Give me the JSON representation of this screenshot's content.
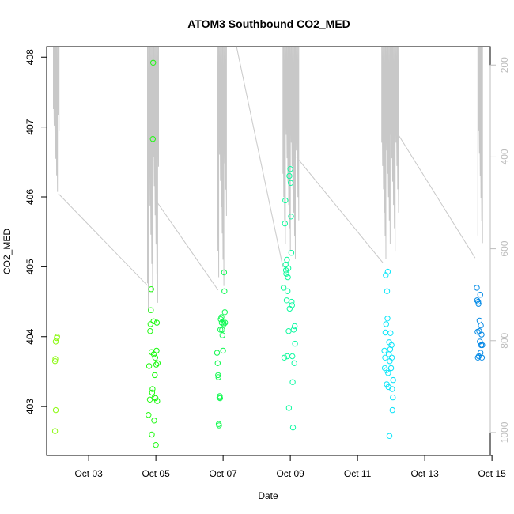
{
  "chart_data": {
    "type": "scatter",
    "title": "ATOM3 Southbound CO2_MED",
    "xlabel": "Date",
    "ylabel": "CO2_MED",
    "x_ticks": [
      "Oct 03",
      "Oct 05",
      "Oct 07",
      "Oct 09",
      "Oct 11",
      "Oct 13",
      "Oct 15"
    ],
    "y_ticks": [
      403,
      404,
      405,
      406,
      407,
      408
    ],
    "y2_ticks": [
      200,
      400,
      600,
      800,
      1000
    ],
    "x_range_days": [
      1.75,
      14.95
    ],
    "x_tick_days": [
      3,
      5,
      7,
      9,
      11,
      13,
      15
    ],
    "y_range": [
      402.3,
      408.15
    ],
    "y2_range": [
      1050,
      160
    ],
    "y2_reversed": true,
    "right_axis_color": "#bdbdbd",
    "grid": false,
    "legend": "none",
    "point_color_scale": "green-to-cyan-to-blue by date",
    "series": [
      {
        "points": [
          {
            "x": 2.0,
            "y": 402.65
          },
          {
            "x": 2.02,
            "y": 402.95
          },
          {
            "x": 2.0,
            "y": 403.65
          },
          {
            "x": 2.01,
            "y": 403.68
          },
          {
            "x": 2.02,
            "y": 403.93
          },
          {
            "x": 2.05,
            "y": 403.98
          },
          {
            "x": 2.06,
            "y": 404.0
          },
          {
            "x": 4.78,
            "y": 402.88
          },
          {
            "x": 4.8,
            "y": 403.58
          },
          {
            "x": 4.82,
            "y": 403.1
          },
          {
            "x": 4.83,
            "y": 404.08
          },
          {
            "x": 4.84,
            "y": 404.18
          },
          {
            "x": 4.85,
            "y": 404.38
          },
          {
            "x": 4.86,
            "y": 404.68
          },
          {
            "x": 4.87,
            "y": 403.78
          },
          {
            "x": 4.88,
            "y": 402.6
          },
          {
            "x": 4.89,
            "y": 403.2
          },
          {
            "x": 4.9,
            "y": 403.25
          },
          {
            "x": 4.91,
            "y": 406.83
          },
          {
            "x": 4.92,
            "y": 407.92
          },
          {
            "x": 4.93,
            "y": 404.22
          },
          {
            "x": 4.94,
            "y": 403.75
          },
          {
            "x": 4.95,
            "y": 402.8
          },
          {
            "x": 4.96,
            "y": 403.13
          },
          {
            "x": 4.97,
            "y": 403.45
          },
          {
            "x": 4.98,
            "y": 403.7
          },
          {
            "x": 4.99,
            "y": 403.12
          },
          {
            "x": 5.0,
            "y": 402.45
          },
          {
            "x": 5.01,
            "y": 403.6
          },
          {
            "x": 5.02,
            "y": 403.8
          },
          {
            "x": 5.03,
            "y": 404.2
          },
          {
            "x": 5.04,
            "y": 403.08
          },
          {
            "x": 5.05,
            "y": 403.62
          },
          {
            "x": 6.82,
            "y": 403.77
          },
          {
            "x": 6.84,
            "y": 403.62
          },
          {
            "x": 6.85,
            "y": 403.45
          },
          {
            "x": 6.86,
            "y": 403.42
          },
          {
            "x": 6.87,
            "y": 402.75
          },
          {
            "x": 6.88,
            "y": 402.73
          },
          {
            "x": 6.89,
            "y": 403.13
          },
          {
            "x": 6.9,
            "y": 403.15
          },
          {
            "x": 6.91,
            "y": 403.12
          },
          {
            "x": 6.92,
            "y": 404.1
          },
          {
            "x": 6.93,
            "y": 404.25
          },
          {
            "x": 6.95,
            "y": 404.28
          },
          {
            "x": 6.96,
            "y": 404.2
          },
          {
            "x": 6.97,
            "y": 404.1
          },
          {
            "x": 6.98,
            "y": 404.02
          },
          {
            "x": 7.0,
            "y": 403.8
          },
          {
            "x": 7.01,
            "y": 404.2
          },
          {
            "x": 7.02,
            "y": 404.18
          },
          {
            "x": 7.03,
            "y": 404.92
          },
          {
            "x": 7.04,
            "y": 404.65
          },
          {
            "x": 7.05,
            "y": 404.35
          },
          {
            "x": 7.06,
            "y": 404.2
          },
          {
            "x": 8.8,
            "y": 404.7
          },
          {
            "x": 8.82,
            "y": 403.7
          },
          {
            "x": 8.84,
            "y": 405.62
          },
          {
            "x": 8.85,
            "y": 405.95
          },
          {
            "x": 8.86,
            "y": 405.03
          },
          {
            "x": 8.87,
            "y": 404.95
          },
          {
            "x": 8.88,
            "y": 404.9
          },
          {
            "x": 8.89,
            "y": 404.52
          },
          {
            "x": 8.9,
            "y": 405.1
          },
          {
            "x": 8.91,
            "y": 403.72
          },
          {
            "x": 8.92,
            "y": 404.65
          },
          {
            "x": 8.93,
            "y": 404.85
          },
          {
            "x": 8.94,
            "y": 404.98
          },
          {
            "x": 8.95,
            "y": 404.08
          },
          {
            "x": 8.96,
            "y": 402.98
          },
          {
            "x": 8.97,
            "y": 406.3
          },
          {
            "x": 8.98,
            "y": 404.4
          },
          {
            "x": 9.0,
            "y": 406.4
          },
          {
            "x": 9.01,
            "y": 406.2
          },
          {
            "x": 9.02,
            "y": 405.72
          },
          {
            "x": 9.03,
            "y": 405.2
          },
          {
            "x": 9.04,
            "y": 404.5
          },
          {
            "x": 9.05,
            "y": 404.45
          },
          {
            "x": 9.06,
            "y": 403.72
          },
          {
            "x": 9.07,
            "y": 403.35
          },
          {
            "x": 9.08,
            "y": 402.7
          },
          {
            "x": 9.1,
            "y": 404.1
          },
          {
            "x": 9.12,
            "y": 403.62
          },
          {
            "x": 9.13,
            "y": 404.15
          },
          {
            "x": 9.14,
            "y": 403.9
          },
          {
            "x": 11.8,
            "y": 403.8
          },
          {
            "x": 11.81,
            "y": 403.55
          },
          {
            "x": 11.82,
            "y": 403.7
          },
          {
            "x": 11.83,
            "y": 404.06
          },
          {
            "x": 11.84,
            "y": 404.88
          },
          {
            "x": 11.85,
            "y": 404.18
          },
          {
            "x": 11.86,
            "y": 403.52
          },
          {
            "x": 11.87,
            "y": 403.32
          },
          {
            "x": 11.88,
            "y": 404.65
          },
          {
            "x": 11.89,
            "y": 404.26
          },
          {
            "x": 11.9,
            "y": 404.93
          },
          {
            "x": 11.91,
            "y": 403.48
          },
          {
            "x": 11.92,
            "y": 403.28
          },
          {
            "x": 11.93,
            "y": 403.75
          },
          {
            "x": 11.94,
            "y": 403.92
          },
          {
            "x": 11.95,
            "y": 402.58
          },
          {
            "x": 11.96,
            "y": 403.65
          },
          {
            "x": 11.97,
            "y": 403.82
          },
          {
            "x": 11.98,
            "y": 404.05
          },
          {
            "x": 12.0,
            "y": 403.55
          },
          {
            "x": 12.01,
            "y": 403.88
          },
          {
            "x": 12.02,
            "y": 403.7
          },
          {
            "x": 12.03,
            "y": 403.25
          },
          {
            "x": 12.04,
            "y": 402.95
          },
          {
            "x": 12.05,
            "y": 403.13
          },
          {
            "x": 12.06,
            "y": 403.38
          },
          {
            "x": 14.55,
            "y": 404.7
          },
          {
            "x": 14.56,
            "y": 404.52
          },
          {
            "x": 14.57,
            "y": 404.07
          },
          {
            "x": 14.58,
            "y": 403.7
          },
          {
            "x": 14.59,
            "y": 404.5
          },
          {
            "x": 14.6,
            "y": 404.47
          },
          {
            "x": 14.61,
            "y": 403.72
          },
          {
            "x": 14.62,
            "y": 404.08
          },
          {
            "x": 14.63,
            "y": 404.23
          },
          {
            "x": 14.64,
            "y": 403.93
          },
          {
            "x": 14.65,
            "y": 404.6
          },
          {
            "x": 14.66,
            "y": 403.77
          },
          {
            "x": 14.67,
            "y": 404.16
          },
          {
            "x": 14.68,
            "y": 403.88
          },
          {
            "x": 14.69,
            "y": 404.03
          },
          {
            "x": 14.7,
            "y": 403.7
          },
          {
            "x": 14.71,
            "y": 403.88
          }
        ]
      }
    ],
    "secondary_series": {
      "type": "line",
      "color": "#c8c8c8",
      "axis": "right",
      "trend_segments": [
        {
          "x": [
            2.1,
            4.75
          ],
          "y2": [
            480,
            680
          ]
        },
        {
          "x": [
            5.05,
            6.85
          ],
          "y2": [
            500,
            690
          ]
        },
        {
          "x": [
            7.4,
            8.78
          ],
          "y2": [
            160,
            640
          ]
        },
        {
          "x": [
            9.18,
            11.75
          ],
          "y2": [
            400,
            630
          ]
        },
        {
          "x": [
            12.2,
            14.5
          ],
          "y2": [
            350,
            620
          ]
        }
      ],
      "spike_clusters": [
        {
          "x_start": 1.95,
          "x_end": 2.12,
          "y2_min": 160,
          "y2_max": 500
        },
        {
          "x_start": 4.75,
          "x_end": 5.08,
          "y2_min": 160,
          "y2_max": 760
        },
        {
          "x_start": 6.82,
          "x_end": 7.1,
          "y2_min": 160,
          "y2_max": 700
        },
        {
          "x_start": 8.78,
          "x_end": 9.25,
          "y2_min": 160,
          "y2_max": 640
        },
        {
          "x_start": 11.72,
          "x_end": 12.22,
          "y2_min": 160,
          "y2_max": 640
        },
        {
          "x_start": 14.58,
          "x_end": 14.72,
          "y2_min": 160,
          "y2_max": 620
        }
      ]
    }
  }
}
